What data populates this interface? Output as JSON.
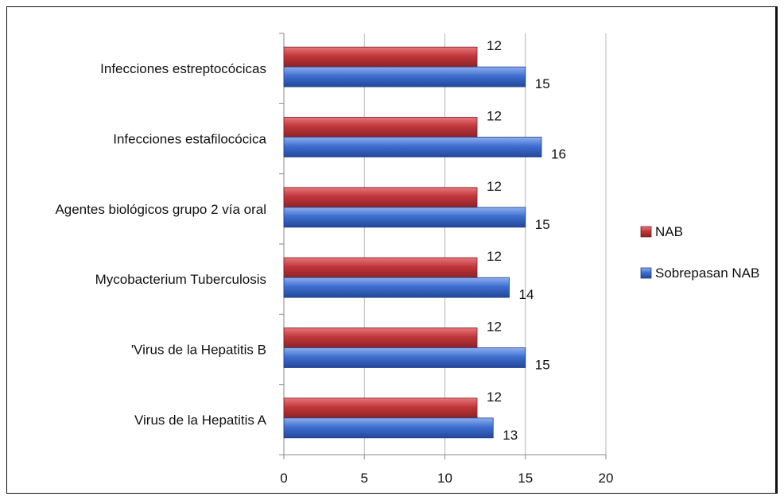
{
  "chart_data": {
    "type": "bar",
    "orientation": "horizontal",
    "categories": [
      "Infecciones estreptocócicas",
      "Infecciones estafilocócica",
      "Agentes biológicos grupo 2 vía oral",
      "Mycobacterium Tuberculosis",
      "'Virus de la Hepatitis B",
      "Virus de la Hepatitis A"
    ],
    "series": [
      {
        "name": "NAB",
        "color": "#c0373b",
        "values": [
          12,
          12,
          12,
          12,
          12,
          12
        ]
      },
      {
        "name": "Sobrepasan NAB",
        "color": "#3f6fd0",
        "values": [
          15,
          16,
          15,
          14,
          15,
          13
        ]
      }
    ],
    "xlim": [
      0,
      20
    ],
    "xticks": [
      "0",
      "5",
      "10",
      "15",
      "20"
    ],
    "grid": true,
    "legend_position": "right",
    "title": "",
    "xlabel": "",
    "ylabel": ""
  }
}
